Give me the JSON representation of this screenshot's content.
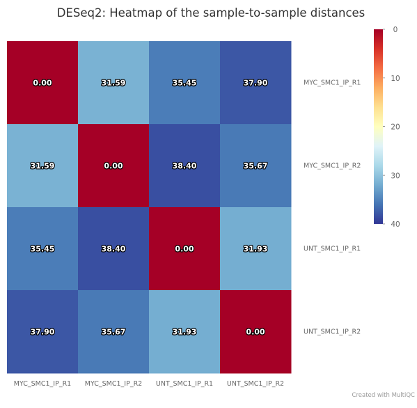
{
  "chart_data": {
    "type": "heatmap",
    "title": "DESeq2: Heatmap of the sample-to-sample distances",
    "x_categories": [
      "MYC_SMC1_IP_R1",
      "MYC_SMC1_IP_R2",
      "UNT_SMC1_IP_R1",
      "UNT_SMC1_IP_R2"
    ],
    "y_categories": [
      "MYC_SMC1_IP_R1",
      "MYC_SMC1_IP_R2",
      "UNT_SMC1_IP_R1",
      "UNT_SMC1_IP_R2"
    ],
    "values": [
      [
        0.0,
        31.59,
        35.45,
        37.9
      ],
      [
        31.59,
        0.0,
        38.4,
        35.67
      ],
      [
        35.45,
        38.4,
        0.0,
        31.93
      ],
      [
        37.9,
        35.67,
        31.93,
        0.0
      ]
    ],
    "value_labels": [
      [
        "0.00",
        "31.59",
        "35.45",
        "37.90"
      ],
      [
        "31.59",
        "0.00",
        "38.40",
        "35.67"
      ],
      [
        "35.45",
        "38.40",
        "0.00",
        "31.93"
      ],
      [
        "37.90",
        "35.67",
        "31.93",
        "0.00"
      ]
    ],
    "color_range": [
      0,
      40
    ],
    "colorbar_ticks": [
      "0",
      "10",
      "20",
      "30",
      "40"
    ],
    "colorscale": [
      "#a50026",
      "#d73027",
      "#f46d43",
      "#fdae61",
      "#fee090",
      "#ffffbf",
      "#e0f3f8",
      "#abd9e9",
      "#74add1",
      "#4575b4",
      "#313695"
    ],
    "legend_position": "right",
    "grid": false
  },
  "credits": "Created with MultiQC"
}
